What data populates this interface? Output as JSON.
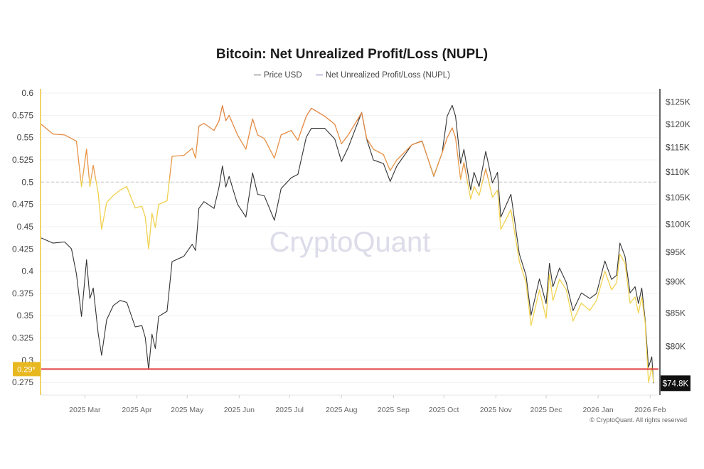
{
  "chart_data": {
    "type": "line",
    "title": "Bitcoin: Net Unrealized Profit/Loss (NUPL)",
    "legend": [
      "Price USD",
      "Net Unrealized Profit/Loss (NUPL)"
    ],
    "watermark": "CryptoQuant",
    "copyright": "© CryptoQuant. All rights reserved",
    "ylim": [
      0.2608,
      0.6048
    ],
    "y2lim_k": [
      73.2,
      128
    ],
    "y2_scale": "log",
    "grid": true,
    "legend_placement": "top-center",
    "left_ticks": [
      "0.6",
      "0.575",
      "0.55",
      "0.525",
      "0.5",
      "0.475",
      "0.45",
      "0.425",
      "0.4",
      "0.375",
      "0.35",
      "0.325",
      "0.3",
      "0.275"
    ],
    "right_ticks": [
      {
        "label": "$125K",
        "value": 125
      },
      {
        "label": "$120K",
        "value": 120
      },
      {
        "label": "$115K",
        "value": 115
      },
      {
        "label": "$110K",
        "value": 110
      },
      {
        "label": "$105K",
        "value": 105
      },
      {
        "label": "$100K",
        "value": 100
      },
      {
        "label": "$95K",
        "value": 95
      },
      {
        "label": "$90K",
        "value": 90
      },
      {
        "label": "$85K",
        "value": 85
      },
      {
        "label": "$80K",
        "value": 80
      }
    ],
    "x_ticks": [
      {
        "label": "2025 Mar",
        "date": "2025-03-01"
      },
      {
        "label": "2025 Apr",
        "date": "2025-04-01"
      },
      {
        "label": "2025 May",
        "date": "2025-05-01"
      },
      {
        "label": "2025 Jun",
        "date": "2025-06-01"
      },
      {
        "label": "2025 Jul",
        "date": "2025-07-01"
      },
      {
        "label": "2025 Aug",
        "date": "2025-08-01"
      },
      {
        "label": "2025 Sep",
        "date": "2025-09-01"
      },
      {
        "label": "2025 Oct",
        "date": "2025-10-01"
      },
      {
        "label": "2025 Nov",
        "date": "2025-11-01"
      },
      {
        "label": "2025 Dec",
        "date": "2025-12-01"
      },
      {
        "label": "2026 Jan",
        "date": "2026-01-01"
      },
      {
        "label": "2026 Feb",
        "date": "2026-02-01"
      }
    ],
    "reference_line": {
      "value": 0.5,
      "style": "dashed"
    },
    "threshold_line": {
      "value": 0.29,
      "label": "0.29*",
      "color": "#e03c3c"
    },
    "last_price_label": "$74.8K",
    "colors": {
      "price": "#333333",
      "nupl_high": "#e07a3c",
      "nupl_low": "#f0cf4a",
      "threshold": "#e03c3c",
      "left_axis": "#f0d36a",
      "badge": "#e8b820"
    },
    "x": [
      "2025-02-03",
      "2025-02-10",
      "2025-02-17",
      "2025-02-21",
      "2025-02-24",
      "2025-02-27",
      "2025-03-02",
      "2025-03-04",
      "2025-03-06",
      "2025-03-09",
      "2025-03-11",
      "2025-03-14",
      "2025-03-18",
      "2025-03-22",
      "2025-03-26",
      "2025-03-31",
      "2025-04-04",
      "2025-04-06",
      "2025-04-08",
      "2025-04-10",
      "2025-04-12",
      "2025-04-14",
      "2025-04-19",
      "2025-04-22",
      "2025-04-29",
      "2025-05-04",
      "2025-05-06",
      "2025-05-08",
      "2025-05-11",
      "2025-05-17",
      "2025-05-20",
      "2025-05-22",
      "2025-05-24",
      "2025-05-26",
      "2025-05-31",
      "2025-06-05",
      "2025-06-09",
      "2025-06-12",
      "2025-06-16",
      "2025-06-22",
      "2025-06-26",
      "2025-07-02",
      "2025-07-06",
      "2025-07-11",
      "2025-07-14",
      "2025-07-22",
      "2025-07-28",
      "2025-08-01",
      "2025-08-05",
      "2025-08-13",
      "2025-08-16",
      "2025-08-20",
      "2025-08-26",
      "2025-08-30",
      "2025-09-03",
      "2025-09-12",
      "2025-09-18",
      "2025-09-25",
      "2025-09-30",
      "2025-10-03",
      "2025-10-06",
      "2025-10-08",
      "2025-10-11",
      "2025-10-13",
      "2025-10-17",
      "2025-10-19",
      "2025-10-22",
      "2025-10-26",
      "2025-10-30",
      "2025-11-02",
      "2025-11-04",
      "2025-11-10",
      "2025-11-15",
      "2025-11-19",
      "2025-11-22",
      "2025-11-27",
      "2025-12-01",
      "2025-12-03",
      "2025-12-05",
      "2025-12-09",
      "2025-12-13",
      "2025-12-17",
      "2025-12-22",
      "2025-12-27",
      "2025-12-31",
      "2026-01-05",
      "2026-01-09",
      "2026-01-12",
      "2026-01-14",
      "2026-01-17",
      "2026-01-20",
      "2026-01-23",
      "2026-01-25",
      "2026-01-27",
      "2026-01-29",
      "2026-01-31",
      "2026-02-02",
      "2026-02-03"
    ],
    "series": [
      {
        "name": "Price USD",
        "unit": "K USD",
        "axis": "right",
        "values": [
          97.5,
          96.6,
          96.8,
          95.6,
          91.3,
          84.5,
          93.7,
          87.3,
          89.0,
          81.8,
          78.7,
          84.0,
          86.2,
          87.0,
          86.7,
          82.9,
          83.1,
          81.3,
          76.7,
          81.8,
          79.7,
          84.5,
          85.3,
          93.4,
          94.3,
          96.4,
          95.3,
          102.9,
          104.2,
          102.9,
          107.0,
          111.2,
          107.0,
          109.1,
          103.7,
          101.3,
          109.8,
          105.6,
          105.3,
          100.7,
          106.7,
          108.8,
          109.5,
          117.2,
          119.1,
          119.1,
          116.8,
          112.1,
          115.0,
          122.6,
          116.8,
          112.4,
          111.7,
          108.1,
          111.2,
          115.6,
          116.4,
          109.1,
          113.9,
          121.8,
          124.2,
          121.8,
          111.7,
          114.6,
          106.4,
          109.9,
          107.1,
          114.2,
          107.8,
          109.9,
          101.3,
          105.6,
          94.7,
          91.1,
          84.7,
          90.5,
          86.5,
          93.1,
          89.2,
          92.3,
          89.9,
          85.4,
          88.2,
          87.3,
          88.1,
          93.5,
          90.4,
          91.1,
          96.6,
          94.3,
          88.2,
          89.2,
          86.5,
          89.0,
          84.0,
          77.0,
          78.5,
          74.8
        ]
      },
      {
        "name": "Net Unrealized Profit/Loss (NUPL)",
        "axis": "left",
        "values": [
          0.565,
          0.554,
          0.553,
          0.549,
          0.546,
          0.495,
          0.537,
          0.495,
          0.519,
          0.487,
          0.447,
          0.477,
          0.485,
          0.491,
          0.495,
          0.471,
          0.473,
          0.461,
          0.425,
          0.465,
          0.449,
          0.475,
          0.479,
          0.529,
          0.53,
          0.538,
          0.527,
          0.563,
          0.566,
          0.558,
          0.569,
          0.586,
          0.569,
          0.575,
          0.553,
          0.537,
          0.571,
          0.553,
          0.549,
          0.527,
          0.553,
          0.558,
          0.547,
          0.574,
          0.583,
          0.574,
          0.565,
          0.543,
          0.553,
          0.578,
          0.549,
          0.537,
          0.531,
          0.513,
          0.525,
          0.542,
          0.546,
          0.507,
          0.533,
          0.55,
          0.561,
          0.55,
          0.503,
          0.522,
          0.481,
          0.495,
          0.485,
          0.515,
          0.483,
          0.491,
          0.447,
          0.469,
          0.411,
          0.387,
          0.339,
          0.379,
          0.347,
          0.397,
          0.367,
          0.391,
          0.379,
          0.344,
          0.364,
          0.356,
          0.367,
          0.4,
          0.379,
          0.387,
          0.419,
          0.409,
          0.364,
          0.371,
          0.353,
          0.371,
          0.342,
          0.275,
          0.292,
          0.275
        ]
      }
    ]
  }
}
